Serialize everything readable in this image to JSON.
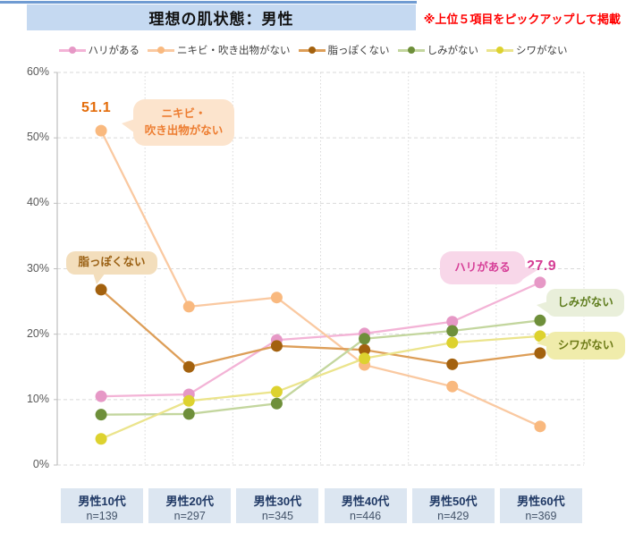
{
  "header": {
    "title": "理想の肌状態：男性",
    "note": "※上位５項目をピックアップして掲載",
    "note_color": "#ff0000",
    "title_bg": "#c5d9f1",
    "top_line_color": "#6f9bd2"
  },
  "chart_data": {
    "type": "line",
    "title": "理想の肌状態：男性",
    "categories": [
      "男性10代",
      "男性20代",
      "男性30代",
      "男性40代",
      "男性50代",
      "男性60代"
    ],
    "sample_sizes": [
      "n=139",
      "n=297",
      "n=345",
      "n=446",
      "n=429",
      "n=369"
    ],
    "ylim": [
      0,
      60
    ],
    "ytick_labels": [
      "0%",
      "10%",
      "20%",
      "30%",
      "40%",
      "50%",
      "60%"
    ],
    "grid": true,
    "legend_position": "top",
    "series": [
      {
        "name": "ハリがある",
        "values": [
          10.5,
          10.8,
          19.1,
          20.1,
          21.9,
          27.9
        ],
        "marker_color": "#e698c6",
        "line_color": "#f3b3d6"
      },
      {
        "name": "ニキビ・吹き出物がない",
        "values": [
          51.1,
          24.2,
          25.6,
          15.3,
          12.0,
          5.9
        ],
        "marker_color": "#f9b97f",
        "line_color": "#fac9a1"
      },
      {
        "name": "脂っぽくない",
        "values": [
          26.8,
          15.0,
          18.2,
          17.6,
          15.4,
          17.1
        ],
        "marker_color": "#a3610e",
        "line_color": "#dd9e58"
      },
      {
        "name": "しみがない",
        "values": [
          7.7,
          7.8,
          9.4,
          19.3,
          20.5,
          22.1
        ],
        "marker_color": "#6e8f3a",
        "line_color": "#c3d69e"
      },
      {
        "name": "シワがない",
        "values": [
          4.0,
          9.8,
          11.2,
          16.3,
          18.7,
          19.7
        ],
        "marker_color": "#ddd22f",
        "line_color": "#ebe48c"
      }
    ],
    "data_labels": [
      {
        "text": "51.1",
        "series": "ニキビ・吹き出物がない",
        "category": "男性10代",
        "color": "#e36c0a"
      },
      {
        "text": "27.9",
        "series": "ハリがある",
        "category": "男性60代",
        "color": "#d53d94"
      }
    ]
  },
  "callouts": {
    "nikibi": {
      "line1": "ニキビ・",
      "line2": "吹き出物がない",
      "color": "#ed7d31",
      "bg": "#fce4cd"
    },
    "abura": {
      "text": "脂っぽくない",
      "color": "#9a6013",
      "bg": "#f3debc"
    },
    "hari": {
      "text": "ハリがある",
      "color": "#d63e97",
      "bg": "#f8d7e9"
    },
    "shimi": {
      "text": "しみがない",
      "color": "#5f7d1e",
      "bg": "#e9efda"
    },
    "shiwa": {
      "text": "シワがない",
      "color": "#6e7b18",
      "bg": "#f0ecab"
    }
  },
  "axis_style": {
    "gridline_color": "#d9d9d9",
    "axis_color": "#bfbfbf",
    "xbox_bg": "#dce6f1"
  }
}
